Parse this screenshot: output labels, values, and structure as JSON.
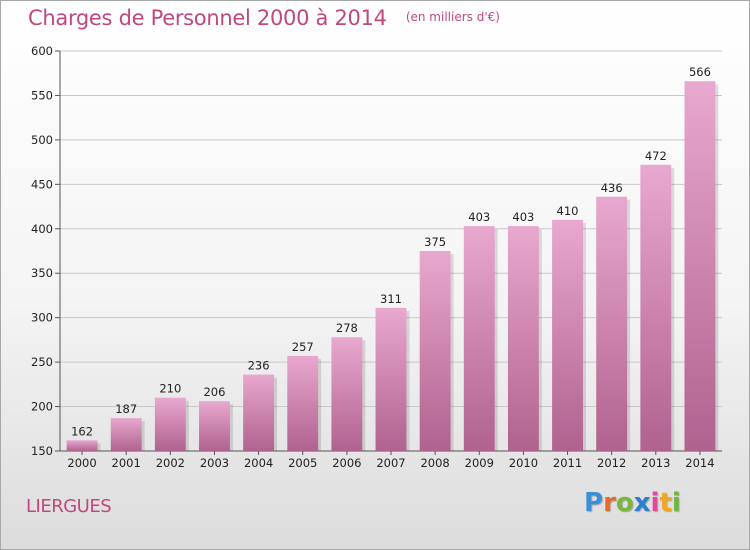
{
  "header": {
    "title": "Charges de Personnel 2000 à 2014",
    "subtitle": "(en milliers d'€)"
  },
  "commune": "LIERGUES",
  "logo": {
    "letters": [
      "P",
      "r",
      "o",
      "x",
      "i",
      "t",
      "i"
    ],
    "colors": [
      "#3a8fd6",
      "#e9682a",
      "#7ab83a",
      "#2a7fd0",
      "#e04a9c",
      "#f2a81c",
      "#6db73c"
    ]
  },
  "colors": {
    "bar_top": "#e8a8cf",
    "bar_bottom": "#b0628f",
    "accent": "#c0487f"
  },
  "chart_data": {
    "type": "bar",
    "categories": [
      "2000",
      "2001",
      "2002",
      "2003",
      "2004",
      "2005",
      "2006",
      "2007",
      "2008",
      "2009",
      "2010",
      "2011",
      "2012",
      "2013",
      "2014"
    ],
    "values": [
      162,
      187,
      210,
      206,
      236,
      257,
      278,
      311,
      375,
      403,
      403,
      410,
      436,
      472,
      566
    ],
    "value_labels": [
      "162",
      "187",
      "210",
      "206",
      "236",
      "257",
      "278",
      "311",
      "375",
      "403",
      "403",
      "410",
      "436",
      "472",
      "566"
    ],
    "ylim": [
      150,
      600
    ],
    "yticks": [
      150,
      200,
      250,
      300,
      350,
      400,
      450,
      500,
      550,
      600
    ],
    "ytick_labels": [
      "150",
      "200",
      "250",
      "300",
      "350",
      "400",
      "450",
      "500",
      "550",
      "600"
    ],
    "grid": true
  }
}
